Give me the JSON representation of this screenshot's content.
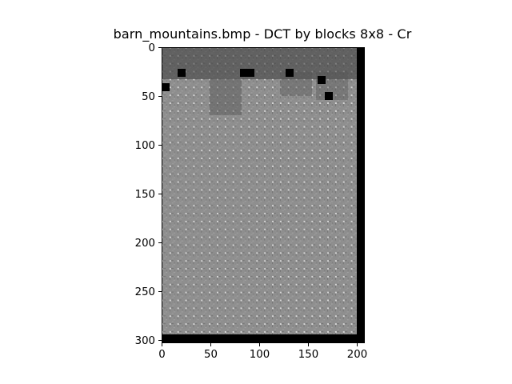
{
  "figure": {
    "title": "barn_mountains.bmp - DCT by blocks 8x8 - Cr"
  },
  "chart_data": {
    "type": "heatmap",
    "title": "barn_mountains.bmp - DCT by blocks 8x8 - Cr",
    "colormap": "gray",
    "block_size": 8,
    "xlim": [
      0,
      207
    ],
    "ylim": [
      303,
      0
    ],
    "x_ticks": [
      0,
      50,
      100,
      150,
      200
    ],
    "y_ticks": [
      0,
      50,
      100,
      150,
      200,
      250,
      300
    ],
    "x_tick_labels": [
      "0",
      "50",
      "100",
      "150",
      "200"
    ],
    "y_tick_labels": [
      "0",
      "50",
      "100",
      "150",
      "200",
      "250",
      "300"
    ],
    "image_width": 207,
    "image_height": 303,
    "xlabel": "",
    "ylabel": "",
    "grid": false
  },
  "colors": {
    "background": "#ffffff",
    "axis": "#000000",
    "border_band": "#000000"
  }
}
